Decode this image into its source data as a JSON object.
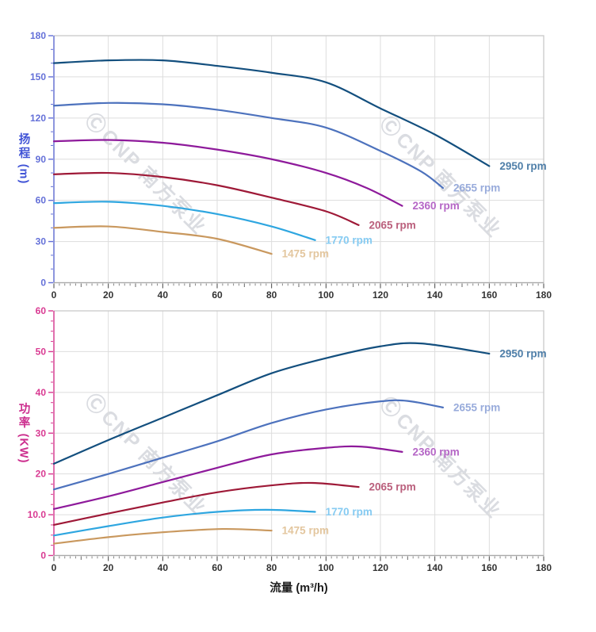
{
  "watermark": {
    "logo_glyph": "Ⓒ",
    "text": "CNP 南方泵业"
  },
  "chart_data": [
    {
      "type": "line",
      "name": "head-vs-flow",
      "title": "",
      "xlabel": "流量 (m³/h)",
      "ylabel": "扬程 (m)",
      "ylabel_cn": "扬程",
      "ylabel_unit": "(m)",
      "xlim": [
        0,
        180
      ],
      "ylim": [
        0,
        180
      ],
      "x_major": 20,
      "x_minor": 2,
      "y_major": 30,
      "y_minor": 10,
      "grid": true,
      "legend_position": "curve-end-labels",
      "x_tick_labels": [
        "0",
        "20",
        "40",
        "60",
        "80",
        "100",
        "120",
        "140",
        "160",
        "180"
      ],
      "y_tick_labels": [
        "0",
        "30",
        "60",
        "90",
        "120",
        "150",
        "180"
      ],
      "axis_color": "#6470D8",
      "title_color": "#4053D6",
      "series": [
        {
          "name": "2950 rpm",
          "color": "#134F7E",
          "label_color": "#4F7FA9",
          "points": [
            [
              0,
              160
            ],
            [
              20,
              162
            ],
            [
              40,
              162
            ],
            [
              60,
              158
            ],
            [
              80,
              153
            ],
            [
              100,
              146
            ],
            [
              120,
              127
            ],
            [
              140,
              108
            ],
            [
              160,
              85
            ]
          ]
        },
        {
          "name": "2655 rpm",
          "color": "#4D72BD",
          "label_color": "#98ABDB",
          "points": [
            [
              0,
              129
            ],
            [
              20,
              131
            ],
            [
              40,
              130
            ],
            [
              60,
              126
            ],
            [
              80,
              120
            ],
            [
              100,
              113
            ],
            [
              120,
              96
            ],
            [
              135,
              81
            ],
            [
              143,
              69
            ]
          ]
        },
        {
          "name": "2360 rpm",
          "color": "#8E1A9B",
          "label_color": "#B566C6",
          "points": [
            [
              0,
              103
            ],
            [
              20,
              104
            ],
            [
              40,
              102
            ],
            [
              60,
              97
            ],
            [
              80,
              90
            ],
            [
              100,
              80
            ],
            [
              115,
              69
            ],
            [
              128,
              56
            ]
          ]
        },
        {
          "name": "2065 rpm",
          "color": "#9E1937",
          "label_color": "#BA5F7C",
          "points": [
            [
              0,
              79
            ],
            [
              20,
              80
            ],
            [
              40,
              77
            ],
            [
              60,
              71
            ],
            [
              80,
              62
            ],
            [
              100,
              52
            ],
            [
              112,
              42
            ]
          ]
        },
        {
          "name": "1770 rpm",
          "color": "#2EA6E0",
          "label_color": "#86CBF2",
          "points": [
            [
              0,
              58
            ],
            [
              20,
              59
            ],
            [
              40,
              56
            ],
            [
              60,
              50
            ],
            [
              80,
              41
            ],
            [
              96,
              31
            ]
          ]
        },
        {
          "name": "1475 rpm",
          "color": "#C9985E",
          "label_color": "#E3C69E",
          "points": [
            [
              0,
              40
            ],
            [
              20,
              41
            ],
            [
              40,
              37
            ],
            [
              60,
              32
            ],
            [
              80,
              21
            ]
          ]
        }
      ]
    },
    {
      "type": "line",
      "name": "power-vs-flow",
      "title": "",
      "xlabel": "流量 (m³/h)",
      "ylabel": "功率 (KW)",
      "ylabel_cn": "功率",
      "ylabel_unit": "(KW)",
      "xlim": [
        0,
        180
      ],
      "ylim": [
        0,
        60
      ],
      "x_major": 20,
      "x_minor": 2,
      "y_major": 10,
      "y_minor": 2.5,
      "grid": true,
      "legend_position": "curve-end-labels",
      "x_tick_labels": [
        "0",
        "20",
        "40",
        "60",
        "80",
        "100",
        "120",
        "140",
        "160",
        "180"
      ],
      "y_tick_labels": [
        "0",
        "10.0",
        "20",
        "30",
        "40",
        "50",
        "60"
      ],
      "axis_color": "#D93A92",
      "title_color": "#CC2E8E",
      "series": [
        {
          "name": "2950 rpm",
          "color": "#134F7E",
          "label_color": "#4F7FA9",
          "points": [
            [
              0,
              22.5
            ],
            [
              20,
              28.3
            ],
            [
              40,
              33.8
            ],
            [
              60,
              39.3
            ],
            [
              80,
              44.7
            ],
            [
              100,
              48.4
            ],
            [
              120,
              51.3
            ],
            [
              135,
              52
            ],
            [
              160,
              49.5
            ]
          ]
        },
        {
          "name": "2655 rpm",
          "color": "#4D72BD",
          "label_color": "#98ABDB",
          "points": [
            [
              0,
              16.2
            ],
            [
              20,
              20
            ],
            [
              40,
              24
            ],
            [
              60,
              28
            ],
            [
              80,
              32.5
            ],
            [
              100,
              35.8
            ],
            [
              120,
              37.8
            ],
            [
              130,
              37.9
            ],
            [
              143,
              36.3
            ]
          ]
        },
        {
          "name": "2360 rpm",
          "color": "#8E1A9B",
          "label_color": "#B566C6",
          "points": [
            [
              0,
              11.4
            ],
            [
              20,
              14.5
            ],
            [
              40,
              18
            ],
            [
              60,
              21.5
            ],
            [
              80,
              24.8
            ],
            [
              100,
              26.4
            ],
            [
              113,
              26.7
            ],
            [
              128,
              25.4
            ]
          ]
        },
        {
          "name": "2065 rpm",
          "color": "#9E1937",
          "label_color": "#BA5F7C",
          "points": [
            [
              0,
              7.5
            ],
            [
              20,
              10.3
            ],
            [
              40,
              13
            ],
            [
              60,
              15.5
            ],
            [
              80,
              17.2
            ],
            [
              95,
              17.8
            ],
            [
              112,
              16.8
            ]
          ]
        },
        {
          "name": "1770 rpm",
          "color": "#2EA6E0",
          "label_color": "#86CBF2",
          "points": [
            [
              0,
              4.9
            ],
            [
              20,
              7.2
            ],
            [
              40,
              9.3
            ],
            [
              60,
              10.7
            ],
            [
              78,
              11.2
            ],
            [
              96,
              10.7
            ]
          ]
        },
        {
          "name": "1475 rpm",
          "color": "#C9985E",
          "label_color": "#E3C69E",
          "points": [
            [
              0,
              2.9
            ],
            [
              20,
              4.5
            ],
            [
              40,
              5.7
            ],
            [
              62,
              6.5
            ],
            [
              80,
              6.1
            ]
          ]
        }
      ]
    }
  ]
}
